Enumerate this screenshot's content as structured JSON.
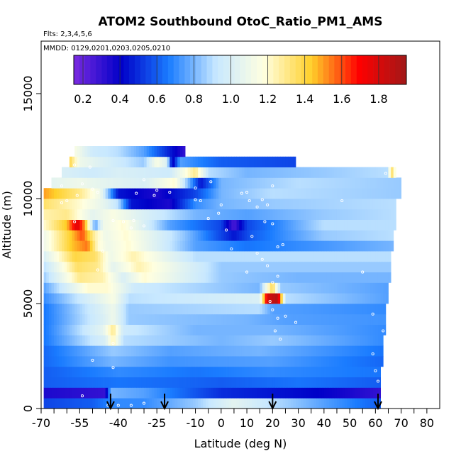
{
  "chart_data": {
    "type": "heatmap",
    "title": "ATOM2 Southbound OtoC_Ratio_PM1_AMS",
    "subtitle_lines": [
      "Flts: 2,3,4,5,6",
      "MMDD: 0129,0201,0203,0205,0210"
    ],
    "xlabel": "Latitude (deg N)",
    "ylabel": "Altitude (m)",
    "xlim": [
      -70,
      85
    ],
    "ylim": [
      0,
      17500
    ],
    "x_ticks": [
      -70,
      -55,
      -40,
      -25,
      -10,
      0,
      10,
      20,
      30,
      40,
      50,
      60,
      70,
      80
    ],
    "x_ticks_minor": [
      -65,
      -60,
      -50,
      -45,
      -35,
      -30,
      -20,
      -15,
      -5,
      5,
      15,
      25,
      35,
      45,
      55,
      65,
      75
    ],
    "y_ticks": [
      0,
      5000,
      10000,
      15000
    ],
    "colorbar": {
      "vmin": 0.15,
      "vmax": 1.95,
      "ticks": [
        0.2,
        0.4,
        0.6,
        0.8,
        1.0,
        1.2,
        1.4,
        1.6,
        1.8
      ],
      "colors": [
        "#7b2be0",
        "#0000c8",
        "#1a7cff",
        "#c8e8ff",
        "#ffffe0",
        "#ffd02a",
        "#ff0000",
        "#a01818"
      ]
    },
    "arrow_latitudes": [
      -43,
      -22,
      20,
      61
    ],
    "rows": [
      {
        "y0": 0,
        "y1": 500,
        "x0": -69,
        "x1": 62,
        "stops": [
          [
            -69,
            0.55
          ],
          [
            -50,
            0.6
          ],
          [
            -42,
            0.7
          ],
          [
            -30,
            0.7
          ],
          [
            -10,
            0.85
          ],
          [
            5,
            1.05
          ],
          [
            20,
            0.9
          ],
          [
            40,
            0.75
          ],
          [
            62,
            0.6
          ]
        ]
      },
      {
        "y0": 500,
        "y1": 1000,
        "x0": -69,
        "x1": 62,
        "stops": [
          [
            -69,
            0.35
          ],
          [
            -45,
            0.3
          ],
          [
            -43,
            0.8
          ],
          [
            -30,
            0.75
          ],
          [
            0,
            0.5
          ],
          [
            20,
            0.45
          ],
          [
            40,
            0.4
          ],
          [
            62,
            0.3
          ]
        ]
      },
      {
        "y0": 1000,
        "y1": 1500,
        "x0": -69,
        "x1": 62,
        "stops": [
          [
            -69,
            0.6
          ],
          [
            -40,
            0.65
          ],
          [
            0,
            0.6
          ],
          [
            30,
            0.65
          ],
          [
            62,
            0.6
          ]
        ]
      },
      {
        "y0": 1500,
        "y1": 2000,
        "x0": -69,
        "x1": 62,
        "stops": [
          [
            -69,
            0.6
          ],
          [
            -40,
            0.7
          ],
          [
            -10,
            0.65
          ],
          [
            20,
            0.7
          ],
          [
            62,
            0.65
          ]
        ]
      },
      {
        "y0": 2000,
        "y1": 2500,
        "x0": -69,
        "x1": 63,
        "stops": [
          [
            -69,
            0.62
          ],
          [
            -42,
            0.8
          ],
          [
            -20,
            0.72
          ],
          [
            20,
            0.75
          ],
          [
            63,
            0.62
          ]
        ]
      },
      {
        "y0": 2500,
        "y1": 3000,
        "x0": -69,
        "x1": 63,
        "stops": [
          [
            -69,
            0.62
          ],
          [
            -42,
            0.85
          ],
          [
            -20,
            0.75
          ],
          [
            15,
            0.8
          ],
          [
            63,
            0.65
          ]
        ]
      },
      {
        "y0": 3000,
        "y1": 3500,
        "x0": -69,
        "x1": 63,
        "stops": [
          [
            -69,
            0.65
          ],
          [
            -45,
            1.0
          ],
          [
            -42,
            1.25
          ],
          [
            -38,
            0.9
          ],
          [
            0,
            0.8
          ],
          [
            20,
            0.85
          ],
          [
            63,
            0.7
          ]
        ]
      },
      {
        "y0": 3500,
        "y1": 4000,
        "x0": -69,
        "x1": 64,
        "stops": [
          [
            -69,
            0.65
          ],
          [
            -46,
            1.05
          ],
          [
            -42,
            1.3
          ],
          [
            -38,
            0.95
          ],
          [
            -10,
            0.8
          ],
          [
            20,
            0.8
          ],
          [
            64,
            0.7
          ]
        ]
      },
      {
        "y0": 4000,
        "y1": 4500,
        "x0": -69,
        "x1": 64,
        "stops": [
          [
            -69,
            0.65
          ],
          [
            -46,
            1.0
          ],
          [
            -42,
            1.1
          ],
          [
            -36,
            0.85
          ],
          [
            10,
            0.8
          ],
          [
            25,
            0.75
          ],
          [
            64,
            0.72
          ]
        ]
      },
      {
        "y0": 4500,
        "y1": 5000,
        "x0": -69,
        "x1": 64,
        "stops": [
          [
            -69,
            0.65
          ],
          [
            -47,
            1.0
          ],
          [
            -42,
            1.1
          ],
          [
            -36,
            0.85
          ],
          [
            15,
            0.9
          ],
          [
            20,
            0.75
          ],
          [
            64,
            0.7
          ]
        ]
      },
      {
        "y0": 5000,
        "y1": 5500,
        "x0": -69,
        "x1": 65,
        "stops": [
          [
            -69,
            0.7
          ],
          [
            -48,
            1.05
          ],
          [
            -42,
            1.15
          ],
          [
            -36,
            0.9
          ],
          [
            15,
            1.0
          ],
          [
            18,
            1.8
          ],
          [
            22,
            1.9
          ],
          [
            25,
            0.9
          ],
          [
            65,
            0.75
          ]
        ]
      },
      {
        "y0": 5500,
        "y1": 6000,
        "x0": -69,
        "x1": 65,
        "stops": [
          [
            -69,
            0.75
          ],
          [
            -52,
            1.2
          ],
          [
            -44,
            1.2
          ],
          [
            -34,
            0.95
          ],
          [
            15,
            0.8
          ],
          [
            20,
            1.4
          ],
          [
            23,
            0.85
          ],
          [
            65,
            0.75
          ]
        ]
      },
      {
        "y0": 6000,
        "y1": 6500,
        "x0": -69,
        "x1": 66,
        "stops": [
          [
            -69,
            0.85
          ],
          [
            -55,
            1.3
          ],
          [
            -46,
            1.25
          ],
          [
            -38,
            1.0
          ],
          [
            -30,
            1.2
          ],
          [
            0,
            0.85
          ],
          [
            30,
            0.8
          ],
          [
            66,
            0.8
          ]
        ]
      },
      {
        "y0": 6500,
        "y1": 7000,
        "x0": -69,
        "x1": 66,
        "stops": [
          [
            -69,
            0.9
          ],
          [
            -56,
            1.35
          ],
          [
            -48,
            1.3
          ],
          [
            -42,
            1.05
          ],
          [
            -32,
            1.25
          ],
          [
            0,
            0.85
          ],
          [
            30,
            0.85
          ],
          [
            66,
            0.85
          ]
        ]
      },
      {
        "y0": 7000,
        "y1": 7500,
        "x0": -69,
        "x1": 66,
        "stops": [
          [
            -69,
            1.0
          ],
          [
            -57,
            1.4
          ],
          [
            -49,
            1.35
          ],
          [
            -43,
            1.1
          ],
          [
            -34,
            1.25
          ],
          [
            -10,
            0.9
          ],
          [
            30,
            0.9
          ],
          [
            66,
            0.9
          ]
        ]
      },
      {
        "y0": 7500,
        "y1": 8000,
        "x0": -69,
        "x1": 67,
        "stops": [
          [
            -69,
            1.1
          ],
          [
            -58,
            1.45
          ],
          [
            -52,
            1.55
          ],
          [
            -48,
            1.2
          ],
          [
            -44,
            1.1
          ],
          [
            -36,
            1.2
          ],
          [
            -10,
            0.75
          ],
          [
            10,
            0.65
          ],
          [
            67,
            0.8
          ]
        ]
      },
      {
        "y0": 8000,
        "y1": 8500,
        "x0": -69,
        "x1": 67,
        "stops": [
          [
            -69,
            1.1
          ],
          [
            -58,
            1.45
          ],
          [
            -54,
            1.6
          ],
          [
            -49,
            1.25
          ],
          [
            -45,
            1.1
          ],
          [
            -37,
            1.2
          ],
          [
            -15,
            0.85
          ],
          [
            5,
            0.45
          ],
          [
            12,
            0.6
          ],
          [
            40,
            0.85
          ],
          [
            67,
            0.9
          ]
        ]
      },
      {
        "y0": 8500,
        "y1": 9000,
        "x0": -69,
        "x1": 68,
        "stops": [
          [
            -69,
            1.2
          ],
          [
            -60,
            1.45
          ],
          [
            -56,
            1.8
          ],
          [
            -53,
            1.5
          ],
          [
            -49,
            0.75
          ],
          [
            -46,
            1.1
          ],
          [
            -38,
            1.2
          ],
          [
            -20,
            0.75
          ],
          [
            0,
            0.55
          ],
          [
            5,
            0.25
          ],
          [
            10,
            0.55
          ],
          [
            40,
            0.9
          ],
          [
            68,
            0.9
          ]
        ]
      },
      {
        "y0": 9000,
        "y1": 9500,
        "x0": -69,
        "x1": 68,
        "stops": [
          [
            -69,
            1.25
          ],
          [
            -60,
            1.3
          ],
          [
            -50,
            1.05
          ],
          [
            -42,
            1.15
          ],
          [
            -30,
            1.0
          ],
          [
            -10,
            0.8
          ],
          [
            10,
            0.75
          ],
          [
            40,
            0.85
          ],
          [
            68,
            0.9
          ]
        ]
      },
      {
        "y0": 9500,
        "y1": 10000,
        "x0": -69,
        "x1": 68,
        "stops": [
          [
            -69,
            1.35
          ],
          [
            -55,
            1.2
          ],
          [
            -45,
            1.05
          ],
          [
            -40,
            0.9
          ],
          [
            -35,
            0.45
          ],
          [
            -20,
            0.35
          ],
          [
            -10,
            0.7
          ],
          [
            0,
            0.8
          ],
          [
            20,
            0.85
          ],
          [
            68,
            0.9
          ]
        ]
      },
      {
        "y0": 10000,
        "y1": 10500,
        "x0": -69,
        "x1": 70,
        "stops": [
          [
            -69,
            1.5
          ],
          [
            -55,
            1.3
          ],
          [
            -47,
            1.1
          ],
          [
            -40,
            0.45
          ],
          [
            -25,
            0.35
          ],
          [
            -10,
            0.55
          ],
          [
            0,
            0.8
          ],
          [
            20,
            0.9
          ],
          [
            70,
            0.85
          ]
        ]
      },
      {
        "y0": 10500,
        "y1": 11000,
        "x0": -66,
        "x1": 70,
        "stops": [
          [
            -66,
            1.05
          ],
          [
            -55,
            1.1
          ],
          [
            -45,
            1.05
          ],
          [
            -30,
            1.0
          ],
          [
            -18,
            1.2
          ],
          [
            -12,
            0.75
          ],
          [
            -8,
            0.45
          ],
          [
            0,
            0.8
          ],
          [
            30,
            0.9
          ],
          [
            70,
            0.85
          ]
        ]
      },
      {
        "y0": 11000,
        "y1": 11500,
        "x0": -62,
        "x1": 68,
        "stops": [
          [
            -62,
            1.0
          ],
          [
            -50,
            0.95
          ],
          [
            -40,
            1.0
          ],
          [
            -20,
            0.95
          ],
          [
            -10,
            1.3
          ],
          [
            -5,
            0.9
          ],
          [
            10,
            0.8
          ],
          [
            40,
            0.85
          ],
          [
            65,
            0.9
          ],
          [
            66,
            1.4
          ],
          [
            68,
            1.1
          ]
        ]
      },
      {
        "y0": 11500,
        "y1": 12000,
        "x0": -59,
        "x1": 29,
        "stops": [
          [
            -59,
            1.4
          ],
          [
            -55,
            1.1
          ],
          [
            -45,
            1.0
          ],
          [
            -30,
            0.85
          ],
          [
            -25,
            1.15
          ],
          [
            -21,
            1.0
          ],
          [
            -19,
            0.35
          ],
          [
            -16,
            0.75
          ],
          [
            0,
            0.6
          ],
          [
            29,
            0.55
          ]
        ]
      },
      {
        "y0": 12000,
        "y1": 12500,
        "x0": -57,
        "x1": -14,
        "stops": [
          [
            -57,
            1.15
          ],
          [
            -50,
            0.95
          ],
          [
            -40,
            0.9
          ],
          [
            -30,
            0.75
          ],
          [
            -14,
            0.3
          ]
        ]
      }
    ],
    "scatter_points": [
      [
        -42,
        3100
      ],
      [
        -50,
        10450
      ],
      [
        -48,
        10300
      ],
      [
        -56,
        10150
      ],
      [
        -60,
        9900
      ],
      [
        -62,
        9800
      ],
      [
        -57,
        8900
      ],
      [
        -42,
        8950
      ],
      [
        -38,
        8900
      ],
      [
        -34,
        8950
      ],
      [
        -46,
        7500
      ],
      [
        -48,
        6600
      ],
      [
        -42,
        1950
      ],
      [
        -50,
        2300
      ],
      [
        -10,
        9950
      ],
      [
        -5,
        9050
      ],
      [
        0,
        9700
      ],
      [
        2,
        8500
      ],
      [
        4,
        7600
      ],
      [
        -1,
        9300
      ],
      [
        8,
        10250
      ],
      [
        10,
        10300
      ],
      [
        11,
        9900
      ],
      [
        14,
        9600
      ],
      [
        16,
        9950
      ],
      [
        18,
        9700
      ],
      [
        17,
        8900
      ],
      [
        12,
        8200
      ],
      [
        14,
        7400
      ],
      [
        10,
        6500
      ],
      [
        16,
        7100
      ],
      [
        18,
        6800
      ],
      [
        20,
        6000
      ],
      [
        19,
        5100
      ],
      [
        20,
        4700
      ],
      [
        22,
        4300
      ],
      [
        25,
        4400
      ],
      [
        29,
        4100
      ],
      [
        21,
        3700
      ],
      [
        23,
        3300
      ],
      [
        20,
        8800
      ],
      [
        22,
        7700
      ],
      [
        24,
        7800
      ],
      [
        22,
        6300
      ],
      [
        47,
        9900
      ],
      [
        55,
        6500
      ],
      [
        59,
        4500
      ],
      [
        60,
        1800
      ],
      [
        59,
        2600
      ],
      [
        61,
        1300
      ],
      [
        63,
        3700
      ],
      [
        66,
        2500
      ],
      [
        -25,
        10400
      ],
      [
        -20,
        10300
      ],
      [
        -26,
        10150
      ],
      [
        -30,
        10900
      ],
      [
        -33,
        10250
      ],
      [
        -10,
        10500
      ],
      [
        -4,
        10800
      ],
      [
        20,
        10600
      ],
      [
        -35,
        8600
      ],
      [
        -30,
        8700
      ],
      [
        -8,
        9900
      ],
      [
        -44,
        150
      ],
      [
        -40,
        150
      ],
      [
        -35,
        150
      ],
      [
        -54,
        600
      ],
      [
        -30,
        250
      ],
      [
        -62,
        10600
      ],
      [
        -54,
        10700
      ],
      [
        -57,
        11600
      ],
      [
        -51,
        11500
      ],
      [
        64,
        11200
      ]
    ]
  }
}
